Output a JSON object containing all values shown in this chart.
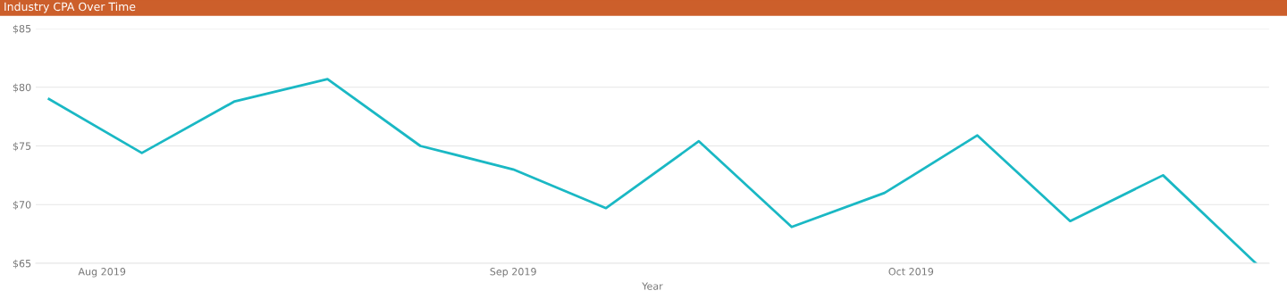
{
  "chart_data": {
    "type": "line",
    "title": "Industry CPA Over Time",
    "xlabel": "Year",
    "x": [
      "2019-07-28",
      "2019-08-04",
      "2019-08-11",
      "2019-08-18",
      "2019-08-25",
      "2019-09-01",
      "2019-09-08",
      "2019-09-15",
      "2019-09-22",
      "2019-09-29",
      "2019-10-06",
      "2019-10-13",
      "2019-10-20",
      "2019-10-27"
    ],
    "series": [
      {
        "color": "#1ab8c4",
        "values": [
          79.0,
          74.4,
          78.8,
          80.7,
          75.0,
          73.0,
          69.7,
          75.4,
          68.1,
          71.0,
          75.9,
          68.6,
          72.5,
          65.0
        ]
      }
    ],
    "xlim": [
      "2019-07-27",
      "2019-10-28"
    ],
    "xticks": [
      {
        "value": "2019-08-01",
        "label": "Aug 2019"
      },
      {
        "value": "2019-09-01",
        "label": "Sep 2019"
      },
      {
        "value": "2019-10-01",
        "label": "Oct 2019"
      }
    ],
    "ylim": [
      65,
      85
    ],
    "yticks": [
      {
        "value": 65,
        "label": "$65"
      },
      {
        "value": 70,
        "label": "$70"
      },
      {
        "value": 75,
        "label": "$75"
      },
      {
        "value": 80,
        "label": "$80"
      },
      {
        "value": 85,
        "label": "$85"
      }
    ],
    "grid": "y",
    "legend": false,
    "marker": "none",
    "line_style": "solid"
  }
}
